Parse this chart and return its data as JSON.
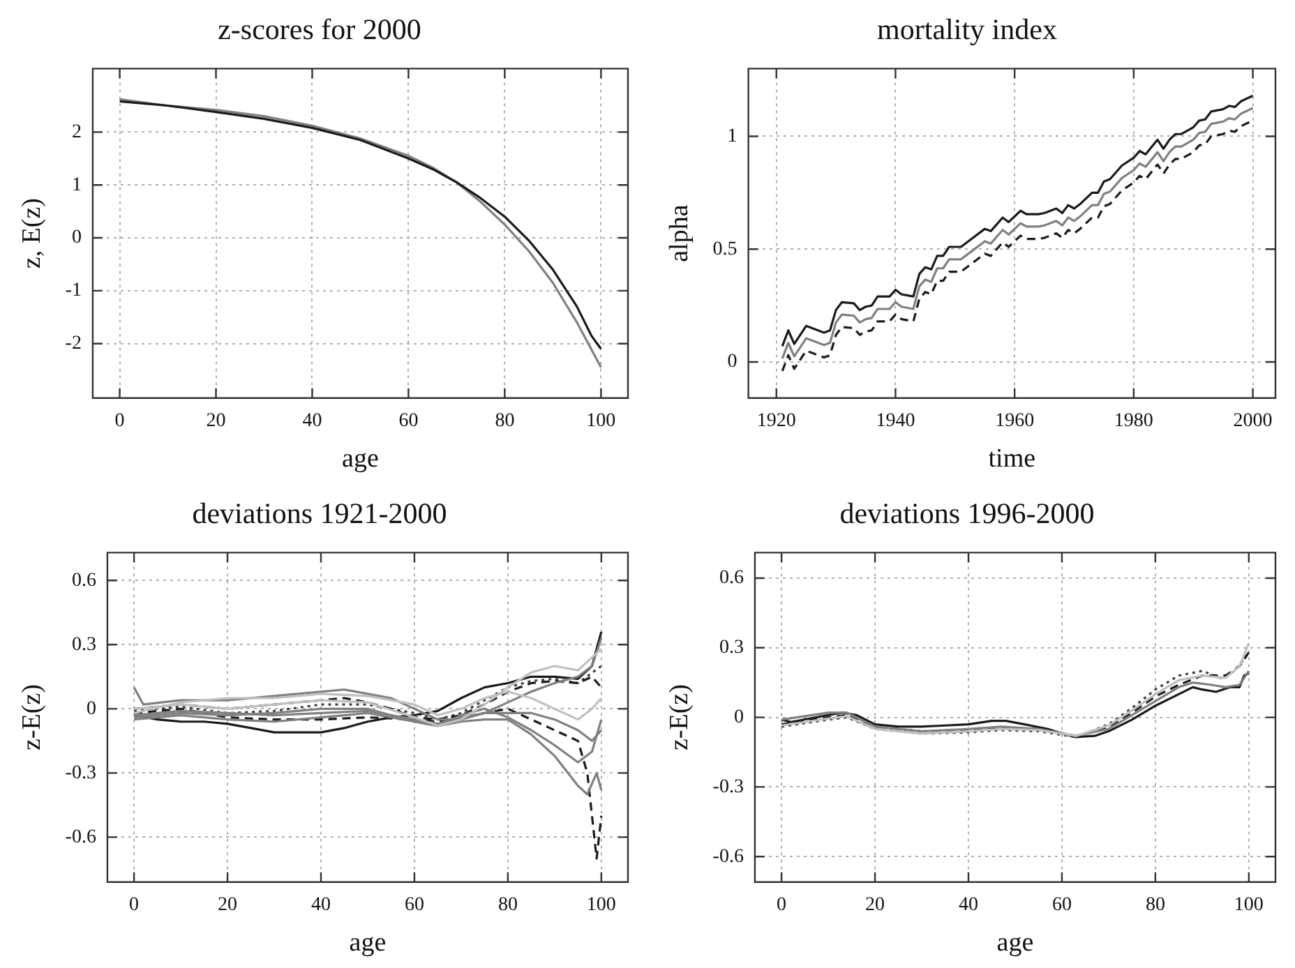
{
  "chart_data": [
    {
      "type": "line",
      "title": "z-scores for 2000",
      "xlabel": "age",
      "ylabel": "z, E(z)",
      "xlim": [
        -5.6,
        105.6
      ],
      "xticks": [
        0,
        20,
        40,
        60,
        80,
        100
      ],
      "ylim": [
        -3.03,
        3.2
      ],
      "yticks": [
        -2,
        -1,
        0,
        1,
        2
      ],
      "grid": true,
      "marker": "none",
      "series": [
        {
          "color": "#1a1a1a",
          "line_style": "solid",
          "x": [
            0,
            10,
            20,
            30,
            40,
            50,
            60,
            65,
            70,
            75,
            80,
            85,
            90,
            95,
            98,
            100
          ],
          "values": [
            2.58,
            2.5,
            2.38,
            2.25,
            2.08,
            1.85,
            1.5,
            1.3,
            1.05,
            0.75,
            0.4,
            -0.05,
            -0.6,
            -1.3,
            -1.85,
            -2.1
          ]
        },
        {
          "color": "#808080",
          "line_style": "solid",
          "x": [
            0,
            10,
            20,
            30,
            40,
            50,
            60,
            65,
            70,
            75,
            80,
            85,
            90,
            95,
            100
          ],
          "values": [
            2.62,
            2.5,
            2.42,
            2.3,
            2.12,
            1.88,
            1.55,
            1.33,
            1.05,
            0.68,
            0.25,
            -0.25,
            -0.85,
            -1.6,
            -2.45
          ]
        }
      ]
    },
    {
      "type": "line",
      "title": "mortality index",
      "xlabel": "time",
      "ylabel": "alpha",
      "xlim": [
        1915.3,
        2003.8
      ],
      "xticks": [
        1920,
        1940,
        1960,
        1980,
        2000
      ],
      "ylim": [
        -0.16,
        1.3
      ],
      "yticks": [
        0,
        0.5,
        1
      ],
      "grid": true,
      "marker": "none",
      "series": [
        {
          "color": "#1a1a1a",
          "line_style": "solid",
          "x": [
            1921,
            1922,
            1923,
            1925,
            1926,
            1928,
            1929,
            1930,
            1931,
            1933,
            1934,
            1935,
            1936,
            1937,
            1939,
            1940,
            1941,
            1943,
            1944,
            1945,
            1946,
            1947,
            1948,
            1949,
            1950,
            1951,
            1953,
            1955,
            1956,
            1958,
            1959,
            1961,
            1962,
            1964,
            1965,
            1967,
            1968,
            1969,
            1970,
            1971,
            1973,
            1974,
            1975,
            1976,
            1978,
            1980,
            1981,
            1982,
            1984,
            1985,
            1986,
            1987,
            1988,
            1990,
            1991,
            1992,
            1993,
            1995,
            1996,
            1997,
            1998,
            2000
          ],
          "values": [
            0.07,
            0.14,
            0.08,
            0.16,
            0.15,
            0.13,
            0.14,
            0.23,
            0.265,
            0.26,
            0.23,
            0.245,
            0.25,
            0.29,
            0.29,
            0.32,
            0.3,
            0.29,
            0.39,
            0.42,
            0.41,
            0.47,
            0.47,
            0.51,
            0.51,
            0.51,
            0.55,
            0.59,
            0.58,
            0.64,
            0.62,
            0.67,
            0.655,
            0.655,
            0.66,
            0.68,
            0.66,
            0.695,
            0.68,
            0.7,
            0.75,
            0.75,
            0.8,
            0.81,
            0.87,
            0.905,
            0.935,
            0.92,
            0.985,
            0.945,
            0.985,
            1.01,
            1.01,
            1.04,
            1.07,
            1.075,
            1.11,
            1.12,
            1.135,
            1.13,
            1.155,
            1.18
          ]
        },
        {
          "color": "#808080",
          "line_style": "solid",
          "x": [
            1921,
            1922,
            1923,
            1925,
            1926,
            1928,
            1929,
            1930,
            1931,
            1933,
            1934,
            1935,
            1936,
            1937,
            1939,
            1940,
            1941,
            1943,
            1944,
            1945,
            1946,
            1947,
            1948,
            1949,
            1950,
            1951,
            1953,
            1955,
            1956,
            1958,
            1959,
            1961,
            1962,
            1964,
            1965,
            1967,
            1968,
            1969,
            1970,
            1971,
            1973,
            1974,
            1975,
            1976,
            1978,
            1980,
            1981,
            1982,
            1984,
            1985,
            1986,
            1987,
            1988,
            1990,
            1991,
            1992,
            1993,
            1995,
            1996,
            1997,
            1998,
            2000
          ],
          "values": [
            0.015,
            0.085,
            0.025,
            0.105,
            0.095,
            0.075,
            0.085,
            0.175,
            0.21,
            0.205,
            0.175,
            0.19,
            0.195,
            0.235,
            0.235,
            0.265,
            0.245,
            0.235,
            0.335,
            0.365,
            0.355,
            0.415,
            0.415,
            0.455,
            0.455,
            0.455,
            0.495,
            0.535,
            0.525,
            0.585,
            0.565,
            0.615,
            0.6,
            0.6,
            0.605,
            0.625,
            0.605,
            0.64,
            0.625,
            0.645,
            0.695,
            0.695,
            0.745,
            0.755,
            0.815,
            0.85,
            0.88,
            0.865,
            0.93,
            0.89,
            0.93,
            0.955,
            0.955,
            0.985,
            1.015,
            1.02,
            1.055,
            1.065,
            1.08,
            1.075,
            1.1,
            1.125
          ]
        },
        {
          "color": "#1a1a1a",
          "line_style": "dashed",
          "x": [
            1921,
            1922,
            1923,
            1925,
            1926,
            1928,
            1929,
            1930,
            1931,
            1933,
            1934,
            1935,
            1936,
            1937,
            1939,
            1940,
            1941,
            1943,
            1944,
            1945,
            1946,
            1947,
            1948,
            1949,
            1950,
            1951,
            1953,
            1955,
            1956,
            1958,
            1959,
            1961,
            1962,
            1964,
            1965,
            1967,
            1968,
            1969,
            1970,
            1971,
            1973,
            1974,
            1975,
            1976,
            1978,
            1980,
            1981,
            1982,
            1984,
            1985,
            1986,
            1987,
            1988,
            1990,
            1991,
            1992,
            1993,
            1995,
            1996,
            1997,
            1998,
            2000
          ],
          "values": [
            -0.04,
            0.03,
            -0.03,
            0.05,
            0.04,
            0.02,
            0.03,
            0.12,
            0.155,
            0.15,
            0.12,
            0.135,
            0.14,
            0.18,
            0.18,
            0.21,
            0.19,
            0.18,
            0.28,
            0.31,
            0.3,
            0.36,
            0.36,
            0.4,
            0.4,
            0.4,
            0.44,
            0.48,
            0.47,
            0.53,
            0.51,
            0.56,
            0.545,
            0.545,
            0.55,
            0.57,
            0.55,
            0.585,
            0.57,
            0.59,
            0.64,
            0.64,
            0.69,
            0.7,
            0.76,
            0.795,
            0.825,
            0.81,
            0.875,
            0.835,
            0.875,
            0.9,
            0.9,
            0.93,
            0.96,
            0.965,
            1.0,
            1.01,
            1.025,
            1.02,
            1.045,
            1.07
          ]
        }
      ]
    },
    {
      "type": "line",
      "title": "deviations 1921-2000",
      "xlabel": "age",
      "ylabel": "z-E(z)",
      "xlim": [
        -5.7,
        105.7
      ],
      "xticks": [
        0,
        20,
        40,
        60,
        80,
        100
      ],
      "ylim": [
        -0.81,
        0.73
      ],
      "yticks": [
        -0.6,
        -0.3,
        0,
        0.3,
        0.6
      ],
      "grid": true,
      "marker": "none",
      "series": [
        {
          "color": "#c0c0c0",
          "line_style": "solid",
          "x": [
            0,
            10,
            20,
            30,
            40,
            50,
            60,
            65,
            70,
            75,
            80,
            85,
            90,
            95,
            100
          ],
          "values": [
            0,
            0.02,
            0,
            0.02,
            0.04,
            0.03,
            -0.04,
            -0.08,
            -0.05,
            0.02,
            0.1,
            0.17,
            0.2,
            0.18,
            0.28
          ]
        },
        {
          "color": "#c0c0c0",
          "line_style": "solid",
          "x": [
            0,
            10,
            20,
            30,
            40,
            50,
            60,
            65,
            70,
            75,
            80,
            85,
            90,
            95,
            98,
            100
          ],
          "values": [
            -0.02,
            0.03,
            0.05,
            0.05,
            0.07,
            0.06,
            0.02,
            -0.03,
            0,
            0.05,
            0.08,
            0.05,
            0,
            -0.05,
            0,
            0.05
          ]
        },
        {
          "color": "#808080",
          "line_style": "solid",
          "x": [
            0,
            2,
            10,
            20,
            30,
            40,
            45,
            50,
            55,
            60,
            65,
            70,
            75,
            80,
            85,
            90,
            95,
            98,
            100
          ],
          "values": [
            0.1,
            0.02,
            0.04,
            0.04,
            0.06,
            0.08,
            0.09,
            0.07,
            0.05,
            0,
            -0.05,
            -0.05,
            -0.02,
            0.03,
            0.08,
            0.12,
            0.15,
            0.2,
            0.33
          ]
        },
        {
          "color": "#808080",
          "line_style": "solid",
          "x": [
            0,
            10,
            20,
            30,
            40,
            50,
            60,
            65,
            70,
            75,
            80,
            85,
            90,
            95,
            97,
            99,
            100
          ],
          "values": [
            -0.04,
            -0.02,
            -0.03,
            -0.02,
            0,
            0,
            -0.06,
            -0.08,
            -0.06,
            -0.05,
            -0.05,
            -0.12,
            -0.22,
            -0.36,
            -0.4,
            -0.3,
            -0.38
          ]
        },
        {
          "color": "#808080",
          "line_style": "solid",
          "x": [
            0,
            10,
            20,
            30,
            40,
            50,
            60,
            65,
            70,
            75,
            80,
            85,
            90,
            95,
            98,
            100
          ],
          "values": [
            -0.05,
            -0.03,
            -0.05,
            -0.06,
            -0.04,
            -0.02,
            -0.06,
            -0.08,
            -0.03,
            0,
            -0.04,
            -0.1,
            -0.17,
            -0.25,
            -0.2,
            -0.05
          ]
        },
        {
          "color": "#808080",
          "line_style": "solid",
          "x": [
            0,
            10,
            20,
            30,
            40,
            50,
            60,
            65,
            70,
            75,
            80,
            85,
            90,
            95,
            98,
            100
          ],
          "values": [
            -0.03,
            -0.01,
            -0.02,
            -0.03,
            -0.02,
            -0.01,
            -0.05,
            -0.07,
            -0.04,
            -0.02,
            -0.02,
            -0.02,
            -0.05,
            -0.1,
            -0.15,
            -0.1
          ]
        },
        {
          "color": "#1a1a1a",
          "line_style": "solid",
          "x": [
            0,
            5,
            10,
            15,
            20,
            25,
            30,
            35,
            40,
            45,
            50,
            55,
            60,
            65,
            70,
            75,
            80,
            85,
            90,
            95,
            98,
            100
          ],
          "values": [
            -0.03,
            -0.05,
            -0.06,
            -0.06,
            -0.07,
            -0.09,
            -0.11,
            -0.11,
            -0.11,
            -0.09,
            -0.06,
            -0.04,
            -0.03,
            -0.01,
            0.05,
            0.1,
            0.12,
            0.15,
            0.15,
            0.14,
            0.2,
            0.36
          ]
        },
        {
          "color": "#1a1a1a",
          "line_style": "dashed",
          "x": [
            0,
            10,
            20,
            30,
            40,
            45,
            50,
            55,
            60,
            65,
            70,
            75,
            80,
            85,
            90,
            95,
            98,
            100
          ],
          "values": [
            0,
            0.02,
            0,
            0.02,
            0.04,
            0.05,
            0.03,
            0,
            -0.04,
            -0.05,
            -0.03,
            0.02,
            0.08,
            0.12,
            0.13,
            0.12,
            0.15,
            0.1
          ]
        },
        {
          "color": "#1a1a1a",
          "line_style": "dashed",
          "x": [
            0,
            10,
            20,
            30,
            40,
            50,
            60,
            65,
            70,
            75,
            80,
            85,
            90,
            95,
            97,
            99,
            100
          ],
          "values": [
            -0.02,
            0,
            -0.04,
            -0.05,
            -0.05,
            -0.04,
            -0.05,
            -0.06,
            -0.04,
            -0.02,
            0,
            -0.05,
            -0.1,
            -0.15,
            -0.3,
            -0.7,
            -0.5
          ]
        },
        {
          "color": "#404040",
          "line_style": "dotted",
          "x": [
            0,
            10,
            20,
            30,
            40,
            50,
            60,
            65,
            70,
            75,
            80,
            85,
            90,
            95,
            100
          ],
          "values": [
            -0.01,
            0.01,
            -0.02,
            -0.01,
            0.02,
            0.02,
            -0.02,
            -0.05,
            -0.02,
            0.04,
            0.1,
            0.13,
            0.14,
            0.12,
            0.2
          ]
        }
      ]
    },
    {
      "type": "line",
      "title": "deviations 1996-2000",
      "xlabel": "age",
      "ylabel": "z-E(z)",
      "xlim": [
        -5.7,
        105.7
      ],
      "xticks": [
        0,
        20,
        40,
        60,
        80,
        100
      ],
      "ylim": [
        -0.71,
        0.71
      ],
      "yticks": [
        -0.6,
        -0.3,
        0,
        0.3,
        0.6
      ],
      "grid": true,
      "marker": "none",
      "series": [
        {
          "color": "#c0c0c0",
          "line_style": "solid",
          "x": [
            0,
            10,
            14,
            20,
            30,
            40,
            47,
            55,
            63,
            70,
            75,
            80,
            85,
            90,
            95,
            98,
            100
          ],
          "values": [
            -0.035,
            -0.005,
            0.005,
            -0.05,
            -0.07,
            -0.06,
            -0.05,
            -0.055,
            -0.08,
            -0.035,
            0.03,
            0.1,
            0.16,
            0.18,
            0.17,
            0.22,
            0.32
          ]
        },
        {
          "color": "#808080",
          "line_style": "solid",
          "x": [
            0,
            10,
            14,
            20,
            30,
            40,
            47,
            55,
            63,
            70,
            75,
            80,
            85,
            88,
            92,
            95,
            98,
            100
          ],
          "values": [
            -0.01,
            0.02,
            0.02,
            -0.04,
            -0.06,
            -0.05,
            -0.04,
            -0.05,
            -0.08,
            -0.05,
            0.01,
            0.07,
            0.13,
            0.15,
            0.14,
            0.13,
            0.14,
            0.2
          ]
        },
        {
          "color": "#1a1a1a",
          "line_style": "solid",
          "x": [
            0,
            2,
            10,
            13,
            16,
            20,
            25,
            30,
            35,
            40,
            45,
            48,
            52,
            57,
            60,
            63,
            67,
            70,
            75,
            80,
            85,
            88,
            90,
            93,
            96,
            98,
            99,
            100
          ],
          "values": [
            -0.01,
            -0.02,
            0.01,
            0.02,
            0.01,
            -0.03,
            -0.04,
            -0.04,
            -0.035,
            -0.03,
            -0.015,
            -0.015,
            -0.03,
            -0.05,
            -0.07,
            -0.085,
            -0.08,
            -0.06,
            -0.01,
            0.05,
            0.1,
            0.13,
            0.12,
            0.11,
            0.13,
            0.13,
            0.18,
            0.19
          ]
        },
        {
          "color": "#1a1a1a",
          "line_style": "dashed",
          "x": [
            0,
            10,
            14,
            20,
            30,
            40,
            47,
            55,
            63,
            70,
            75,
            80,
            85,
            90,
            95,
            98,
            100
          ],
          "values": [
            -0.03,
            0,
            0.01,
            -0.04,
            -0.06,
            -0.055,
            -0.045,
            -0.05,
            -0.08,
            -0.04,
            0.02,
            0.09,
            0.14,
            0.18,
            0.18,
            0.22,
            0.28
          ]
        },
        {
          "color": "#404040",
          "line_style": "dotted",
          "x": [
            0,
            10,
            14,
            20,
            30,
            40,
            47,
            55,
            63,
            70,
            75,
            80,
            85,
            90,
            94,
            97,
            100
          ],
          "values": [
            -0.04,
            -0.01,
            0,
            -0.05,
            -0.07,
            -0.065,
            -0.055,
            -0.06,
            -0.085,
            -0.03,
            0.04,
            0.12,
            0.18,
            0.2,
            0.17,
            0.2,
            0.28
          ]
        }
      ]
    }
  ]
}
